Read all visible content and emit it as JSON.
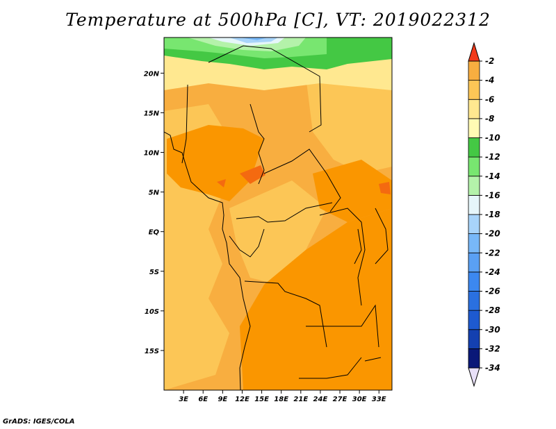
{
  "title": "Temperature at 500hPa [C], VT: 2019022312",
  "credit": "GrADS: IGES/COLA",
  "map": {
    "lat_labels": [
      "20N",
      "15N",
      "10N",
      "5N",
      "EQ",
      "5S",
      "10S",
      "15S"
    ],
    "lat_values": [
      20,
      15,
      10,
      5,
      0,
      -5,
      -10,
      -15
    ],
    "lon_labels": [
      "3E",
      "6E",
      "9E",
      "12E",
      "15E",
      "18E",
      "21E",
      "24E",
      "27E",
      "30E",
      "33E"
    ],
    "lon_values": [
      3,
      6,
      9,
      12,
      15,
      18,
      21,
      24,
      27,
      30,
      33
    ],
    "lat_range": [
      -20,
      24.5
    ],
    "lon_range": [
      0,
      35
    ]
  },
  "colorbar": {
    "labels": [
      "-2",
      "-4",
      "-6",
      "-8",
      "-10",
      "-12",
      "-14",
      "-16",
      "-18",
      "-20",
      "-22",
      "-24",
      "-26",
      "-28",
      "-30",
      "-32",
      "-34"
    ],
    "colors": [
      "#e8e0f8",
      "#0a1878",
      "#1440b0",
      "#1e5ad0",
      "#2a70e0",
      "#3c88f0",
      "#5aa0f4",
      "#78b8f8",
      "#a8d4fa",
      "#e6f6fa",
      "#b4f2aa",
      "#78e670",
      "#44c844",
      "#fffab4",
      "#ffe890",
      "#fcc656",
      "#f8ae40",
      "#fa9600",
      "#f46a10",
      "#f23a1a"
    ]
  }
}
